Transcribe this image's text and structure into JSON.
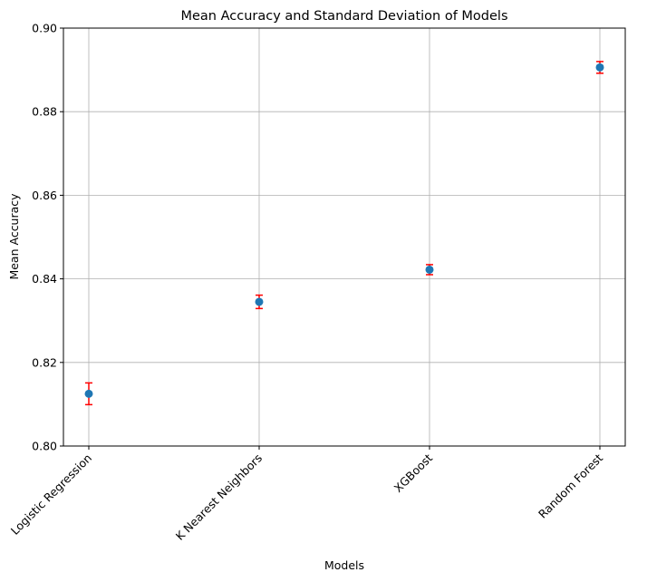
{
  "chart_data": {
    "type": "scatter",
    "title": "Mean Accuracy and Standard Deviation of Models",
    "xlabel": "Models",
    "ylabel": "Mean Accuracy",
    "categories": [
      "Logistic Regression",
      "K Nearest Neighbors",
      "XGBoost",
      "Random Forest"
    ],
    "values": [
      0.8125,
      0.8345,
      0.8422,
      0.8906
    ],
    "errors": [
      0.0026,
      0.0016,
      0.0012,
      0.0014
    ],
    "ylim": [
      0.8,
      0.9
    ],
    "yticks": [
      "0.80",
      "0.82",
      "0.84",
      "0.86",
      "0.88",
      "0.90"
    ],
    "grid": true,
    "marker_color": "#1f77b4",
    "error_color": "#ff0000"
  }
}
